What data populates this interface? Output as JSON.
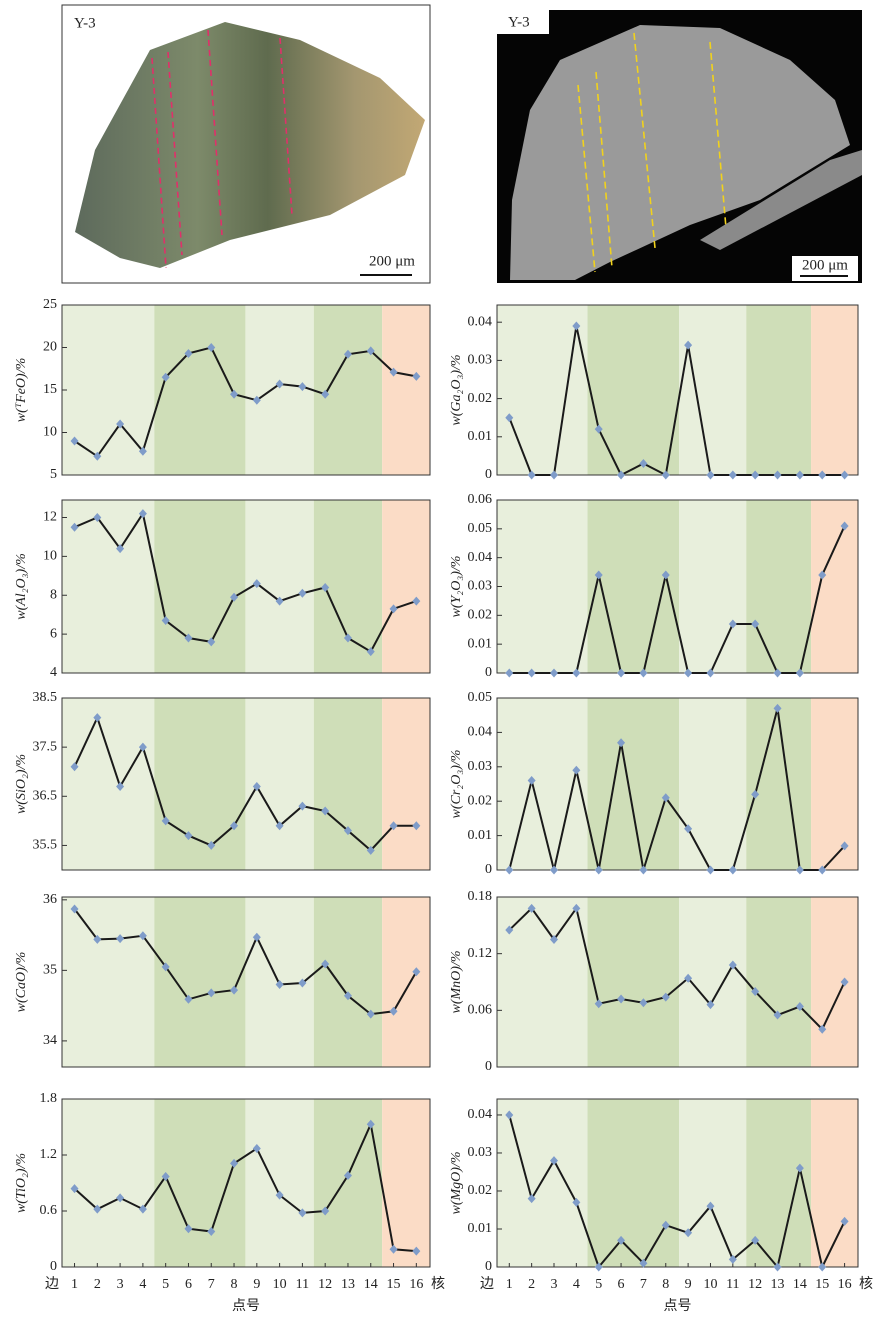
{
  "images": [
    {
      "label": "Y-3",
      "scale": "200 μm"
    },
    {
      "label": "Y-3",
      "scale": "200 μm"
    }
  ],
  "chart_data": [
    {
      "type": "line",
      "y_label": "w(ᵀFeO)/%",
      "x": [
        1,
        2,
        3,
        4,
        5,
        6,
        7,
        8,
        9,
        10,
        11,
        12,
        13,
        14,
        15,
        16
      ],
      "values": [
        9.0,
        7.2,
        11.0,
        7.8,
        16.5,
        19.3,
        20.0,
        14.5,
        13.8,
        15.7,
        15.4,
        14.5,
        19.2,
        19.6,
        17.1,
        16.6
      ],
      "ylim": [
        5,
        25
      ],
      "yticks": [
        5,
        10,
        15,
        20,
        25
      ],
      "xlim": [
        0.45,
        16.6
      ],
      "line_color": "#1a1a1a",
      "marker_color": "#7f9cc9",
      "regions": [
        {
          "from": 0.45,
          "to": 4.5,
          "color": "#e8efdc"
        },
        {
          "from": 4.5,
          "to": 8.5,
          "color": "#cfdeb8"
        },
        {
          "from": 8.5,
          "to": 11.5,
          "color": "#e8efdc"
        },
        {
          "from": 11.5,
          "to": 14.5,
          "color": "#cfdeb8"
        },
        {
          "from": 14.5,
          "to": 16.6,
          "color": "#fbdcc6"
        }
      ]
    },
    {
      "type": "line",
      "y_label": "w(Ga₂O₃)/%",
      "x": [
        1,
        2,
        3,
        4,
        5,
        6,
        7,
        8,
        9,
        10,
        11,
        12,
        13,
        14,
        15,
        16
      ],
      "values": [
        0.015,
        0,
        0,
        0.039,
        0.012,
        0,
        0.003,
        0,
        0.034,
        0,
        0,
        0,
        0,
        0,
        0,
        0
      ],
      "ylim": [
        0,
        0.0445
      ],
      "yticks": [
        0,
        0.01,
        0.02,
        0.03,
        0.04
      ],
      "xlim": [
        0.45,
        16.6
      ],
      "line_color": "#1a1a1a",
      "marker_color": "#7f9cc9",
      "regions": [
        {
          "from": 0.45,
          "to": 4.5,
          "color": "#e8efdc"
        },
        {
          "from": 4.5,
          "to": 8.6,
          "color": "#cfdeb8"
        },
        {
          "from": 8.6,
          "to": 11.6,
          "color": "#e8efdc"
        },
        {
          "from": 11.6,
          "to": 14.5,
          "color": "#cfdeb8"
        },
        {
          "from": 14.5,
          "to": 16.6,
          "color": "#fbdcc6"
        }
      ]
    },
    {
      "type": "line",
      "y_label": "w(Al₂O₃)/%",
      "x": [
        1,
        2,
        3,
        4,
        5,
        6,
        7,
        8,
        9,
        10,
        11,
        12,
        13,
        14,
        15,
        16
      ],
      "values": [
        11.5,
        12.0,
        10.4,
        12.2,
        6.7,
        5.8,
        5.6,
        7.9,
        8.6,
        7.7,
        8.1,
        8.4,
        5.8,
        5.1,
        7.3,
        7.7
      ],
      "ylim": [
        4,
        12.9
      ],
      "yticks": [
        4,
        6,
        8,
        10,
        12
      ],
      "xlim": [
        0.45,
        16.6
      ],
      "line_color": "#1a1a1a",
      "marker_color": "#7f9cc9",
      "regions": [
        {
          "from": 0.45,
          "to": 4.5,
          "color": "#e8efdc"
        },
        {
          "from": 4.5,
          "to": 8.5,
          "color": "#cfdeb8"
        },
        {
          "from": 8.5,
          "to": 11.5,
          "color": "#e8efdc"
        },
        {
          "from": 11.5,
          "to": 14.5,
          "color": "#cfdeb8"
        },
        {
          "from": 14.5,
          "to": 16.6,
          "color": "#fbdcc6"
        }
      ]
    },
    {
      "type": "line",
      "y_label": "w(Y₂O₃)/%",
      "x": [
        1,
        2,
        3,
        4,
        5,
        6,
        7,
        8,
        9,
        10,
        11,
        12,
        13,
        14,
        15,
        16
      ],
      "values": [
        0,
        0,
        0,
        0,
        0.034,
        0,
        0,
        0.034,
        0,
        0,
        0.017,
        0.017,
        0,
        0,
        0.034,
        0.051
      ],
      "ylim": [
        0,
        0.06
      ],
      "yticks": [
        0,
        0.01,
        0.02,
        0.03,
        0.04,
        0.05,
        0.06
      ],
      "xlim": [
        0.45,
        16.6
      ],
      "line_color": "#1a1a1a",
      "marker_color": "#7f9cc9",
      "regions": [
        {
          "from": 0.45,
          "to": 4.5,
          "color": "#e8efdc"
        },
        {
          "from": 4.5,
          "to": 8.6,
          "color": "#cfdeb8"
        },
        {
          "from": 8.6,
          "to": 11.6,
          "color": "#e8efdc"
        },
        {
          "from": 11.6,
          "to": 14.5,
          "color": "#cfdeb8"
        },
        {
          "from": 14.5,
          "to": 16.6,
          "color": "#fbdcc6"
        }
      ]
    },
    {
      "type": "line",
      "y_label": "w(SiO₂)/%",
      "x": [
        1,
        2,
        3,
        4,
        5,
        6,
        7,
        8,
        9,
        10,
        11,
        12,
        13,
        14,
        15,
        16
      ],
      "values": [
        37.1,
        38.1,
        36.7,
        37.5,
        36.0,
        35.7,
        35.5,
        35.9,
        36.7,
        35.9,
        36.3,
        36.2,
        35.8,
        35.4,
        35.9,
        35.9
      ],
      "ylim": [
        35.0,
        38.5
      ],
      "yticks": [
        35.5,
        36.5,
        37.5,
        38.5
      ],
      "xlim": [
        0.45,
        16.6
      ],
      "line_color": "#1a1a1a",
      "marker_color": "#7f9cc9",
      "regions": [
        {
          "from": 0.45,
          "to": 4.5,
          "color": "#e8efdc"
        },
        {
          "from": 4.5,
          "to": 8.5,
          "color": "#cfdeb8"
        },
        {
          "from": 8.5,
          "to": 11.5,
          "color": "#e8efdc"
        },
        {
          "from": 11.5,
          "to": 14.5,
          "color": "#cfdeb8"
        },
        {
          "from": 14.5,
          "to": 16.6,
          "color": "#fbdcc6"
        }
      ]
    },
    {
      "type": "line",
      "y_label": "w(Cr₂O₃)/%",
      "x": [
        1,
        2,
        3,
        4,
        5,
        6,
        7,
        8,
        9,
        10,
        11,
        12,
        13,
        14,
        15,
        16
      ],
      "values": [
        0,
        0.026,
        0,
        0.029,
        0,
        0.037,
        0,
        0.021,
        0.012,
        0,
        0,
        0.022,
        0.047,
        0,
        0,
        0.007
      ],
      "ylim": [
        0,
        0.05
      ],
      "yticks": [
        0,
        0.01,
        0.02,
        0.03,
        0.04,
        0.05
      ],
      "xlim": [
        0.45,
        16.6
      ],
      "line_color": "#1a1a1a",
      "marker_color": "#7f9cc9",
      "regions": [
        {
          "from": 0.45,
          "to": 4.5,
          "color": "#e8efdc"
        },
        {
          "from": 4.5,
          "to": 8.6,
          "color": "#cfdeb8"
        },
        {
          "from": 8.6,
          "to": 11.6,
          "color": "#e8efdc"
        },
        {
          "from": 11.6,
          "to": 14.5,
          "color": "#cfdeb8"
        },
        {
          "from": 14.5,
          "to": 16.6,
          "color": "#fbdcc6"
        }
      ]
    },
    {
      "type": "line",
      "y_label": "w(CaO)/%",
      "x": [
        1,
        2,
        3,
        4,
        5,
        6,
        7,
        8,
        9,
        10,
        11,
        12,
        13,
        14,
        15,
        16
      ],
      "values": [
        35.87,
        35.44,
        35.45,
        35.49,
        35.05,
        34.59,
        34.68,
        34.72,
        35.47,
        34.8,
        34.82,
        35.09,
        34.64,
        34.38,
        34.42,
        34.98
      ],
      "ylim": [
        33.63,
        36.04
      ],
      "yticks": [
        34,
        35,
        36
      ],
      "xlim": [
        0.45,
        16.6
      ],
      "line_color": "#1a1a1a",
      "marker_color": "#7f9cc9",
      "regions": [
        {
          "from": 0.45,
          "to": 4.5,
          "color": "#e8efdc"
        },
        {
          "from": 4.5,
          "to": 8.5,
          "color": "#cfdeb8"
        },
        {
          "from": 8.5,
          "to": 11.5,
          "color": "#e8efdc"
        },
        {
          "from": 11.5,
          "to": 14.5,
          "color": "#cfdeb8"
        },
        {
          "from": 14.5,
          "to": 16.6,
          "color": "#fbdcc6"
        }
      ]
    },
    {
      "type": "line",
      "y_label": "w(MnO)/%",
      "x": [
        1,
        2,
        3,
        4,
        5,
        6,
        7,
        8,
        9,
        10,
        11,
        12,
        13,
        14,
        15,
        16
      ],
      "values": [
        0.145,
        0.168,
        0.135,
        0.168,
        0.067,
        0.072,
        0.068,
        0.074,
        0.094,
        0.066,
        0.108,
        0.08,
        0.055,
        0.064,
        0.04,
        0.09
      ],
      "ylim": [
        0,
        0.18
      ],
      "yticks": [
        0,
        0.06,
        0.12,
        0.18
      ],
      "xlim": [
        0.45,
        16.6
      ],
      "line_color": "#1a1a1a",
      "marker_color": "#7f9cc9",
      "regions": [
        {
          "from": 0.45,
          "to": 4.5,
          "color": "#e8efdc"
        },
        {
          "from": 4.5,
          "to": 8.6,
          "color": "#cfdeb8"
        },
        {
          "from": 8.6,
          "to": 11.6,
          "color": "#e8efdc"
        },
        {
          "from": 11.6,
          "to": 14.5,
          "color": "#cfdeb8"
        },
        {
          "from": 14.5,
          "to": 16.6,
          "color": "#fbdcc6"
        }
      ]
    },
    {
      "type": "line",
      "y_label": "w(TiO₂)/%",
      "x": [
        1,
        2,
        3,
        4,
        5,
        6,
        7,
        8,
        9,
        10,
        11,
        12,
        13,
        14,
        15,
        16
      ],
      "values": [
        0.84,
        0.62,
        0.74,
        0.62,
        0.97,
        0.41,
        0.38,
        1.11,
        1.27,
        0.77,
        0.58,
        0.6,
        0.98,
        1.53,
        0.19,
        0.17
      ],
      "ylim": [
        0,
        1.8
      ],
      "yticks": [
        0,
        0.6,
        1.2,
        1.8
      ],
      "xlim": [
        0.45,
        16.6
      ],
      "xticks": [
        1,
        2,
        3,
        4,
        5,
        6,
        7,
        8,
        9,
        10,
        11,
        12,
        13,
        14,
        15,
        16
      ],
      "x_label": "点号",
      "x_start_label": "边",
      "x_end_label": "核",
      "line_color": "#1a1a1a",
      "marker_color": "#7f9cc9",
      "regions": [
        {
          "from": 0.45,
          "to": 4.5,
          "color": "#e8efdc"
        },
        {
          "from": 4.5,
          "to": 8.5,
          "color": "#cfdeb8"
        },
        {
          "from": 8.5,
          "to": 11.5,
          "color": "#e8efdc"
        },
        {
          "from": 11.5,
          "to": 14.5,
          "color": "#cfdeb8"
        },
        {
          "from": 14.5,
          "to": 16.6,
          "color": "#fbdcc6"
        }
      ]
    },
    {
      "type": "line",
      "y_label": "w(MgO)/%",
      "x": [
        1,
        2,
        3,
        4,
        5,
        6,
        7,
        8,
        9,
        10,
        11,
        12,
        13,
        14,
        15,
        16
      ],
      "values": [
        0.04,
        0.018,
        0.028,
        0.017,
        0,
        0.007,
        0.001,
        0.011,
        0.009,
        0.016,
        0.002,
        0.007,
        0,
        0.026,
        0,
        0.012
      ],
      "ylim": [
        0,
        0.0442
      ],
      "yticks": [
        0,
        0.01,
        0.02,
        0.03,
        0.04
      ],
      "xlim": [
        0.45,
        16.6
      ],
      "xticks": [
        1,
        2,
        3,
        4,
        5,
        6,
        7,
        8,
        9,
        10,
        11,
        12,
        13,
        14,
        15,
        16
      ],
      "x_label": "点号",
      "x_start_label": "边",
      "x_end_label": "核",
      "line_color": "#1a1a1a",
      "marker_color": "#7f9cc9",
      "regions": [
        {
          "from": 0.45,
          "to": 4.5,
          "color": "#e8efdc"
        },
        {
          "from": 4.5,
          "to": 8.6,
          "color": "#cfdeb8"
        },
        {
          "from": 8.6,
          "to": 11.6,
          "color": "#e8efdc"
        },
        {
          "from": 11.6,
          "to": 14.5,
          "color": "#cfdeb8"
        },
        {
          "from": 14.5,
          "to": 16.6,
          "color": "#fbdcc6"
        }
      ]
    }
  ]
}
